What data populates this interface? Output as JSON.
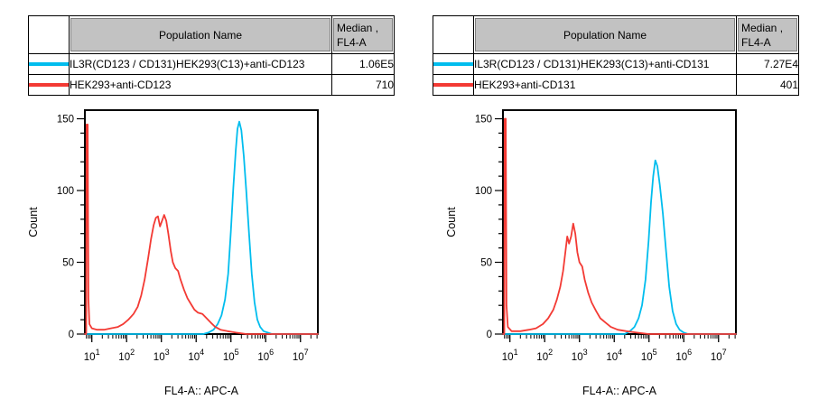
{
  "panels": [
    {
      "table": {
        "population_header": "Population Name",
        "median_header_line1": "Median ,",
        "median_header_line2": "FL4-A",
        "rows": [
          {
            "name": "IL3R(CD123 / CD131)HEK293(C13)+anti-CD123",
            "median": "1.06E5",
            "color": "#00bdee"
          },
          {
            "name": "HEK293+anti-CD123",
            "median": "710",
            "color": "#f33a34"
          }
        ]
      },
      "chart_data": {
        "type": "line",
        "title": "",
        "xlabel": "FL4-A:: APC-A",
        "ylabel": "Count",
        "x_scale": "log10",
        "x_range_log10": [
          0.8,
          7.5
        ],
        "y_range": [
          0,
          156
        ],
        "x_tick_base": "10",
        "x_tick_exponents": [
          1,
          2,
          3,
          4,
          5,
          6,
          7
        ],
        "y_major_ticks": [
          0,
          50,
          100,
          150
        ],
        "y_minor_step": 10,
        "grid": false,
        "legend_position": "table-above",
        "series": [
          {
            "name": "IL3R(CD123 / CD131)HEK293(C13)+anti-CD123",
            "color": "#00bdee",
            "points": [
              [
                0.8,
                0
              ],
              [
                4.2,
                0
              ],
              [
                4.35,
                1
              ],
              [
                4.5,
                3
              ],
              [
                4.62,
                7
              ],
              [
                4.73,
                13
              ],
              [
                4.83,
                24
              ],
              [
                4.92,
                42
              ],
              [
                5.0,
                72
              ],
              [
                5.07,
                102
              ],
              [
                5.14,
                128
              ],
              [
                5.19,
                143
              ],
              [
                5.24,
                148
              ],
              [
                5.3,
                142
              ],
              [
                5.37,
                124
              ],
              [
                5.44,
                100
              ],
              [
                5.52,
                70
              ],
              [
                5.6,
                42
              ],
              [
                5.68,
                22
              ],
              [
                5.76,
                10
              ],
              [
                5.84,
                5
              ],
              [
                5.94,
                2
              ],
              [
                6.06,
                1
              ],
              [
                6.18,
                0
              ],
              [
                7.5,
                0
              ]
            ]
          },
          {
            "name": "HEK293+anti-CD123",
            "color": "#f33a34",
            "points": [
              [
                0.8,
                0
              ],
              [
                0.84,
                0
              ],
              [
                0.85,
                146
              ],
              [
                0.88,
                146
              ],
              [
                0.9,
                25
              ],
              [
                0.93,
                7
              ],
              [
                1.0,
                4
              ],
              [
                1.15,
                3
              ],
              [
                1.35,
                3
              ],
              [
                1.55,
                4
              ],
              [
                1.75,
                5
              ],
              [
                1.9,
                7
              ],
              [
                2.05,
                10
              ],
              [
                2.2,
                14
              ],
              [
                2.32,
                19
              ],
              [
                2.42,
                27
              ],
              [
                2.52,
                38
              ],
              [
                2.62,
                53
              ],
              [
                2.7,
                66
              ],
              [
                2.78,
                76
              ],
              [
                2.84,
                81
              ],
              [
                2.9,
                82
              ],
              [
                2.96,
                75
              ],
              [
                3.02,
                79
              ],
              [
                3.08,
                83
              ],
              [
                3.14,
                79
              ],
              [
                3.2,
                70
              ],
              [
                3.27,
                58
              ],
              [
                3.33,
                50
              ],
              [
                3.4,
                46
              ],
              [
                3.48,
                44
              ],
              [
                3.55,
                38
              ],
              [
                3.65,
                31
              ],
              [
                3.75,
                25
              ],
              [
                3.85,
                21
              ],
              [
                3.95,
                17
              ],
              [
                4.05,
                15
              ],
              [
                4.18,
                14
              ],
              [
                4.3,
                11
              ],
              [
                4.42,
                8
              ],
              [
                4.55,
                5
              ],
              [
                4.7,
                3
              ],
              [
                4.9,
                2
              ],
              [
                5.15,
                1
              ],
              [
                5.45,
                0
              ],
              [
                7.5,
                0
              ]
            ]
          }
        ]
      }
    },
    {
      "table": {
        "population_header": "Population Name",
        "median_header_line1": "Median ,",
        "median_header_line2": "FL4-A",
        "rows": [
          {
            "name": "IL3R(CD123 / CD131)HEK293(C13)+anti-CD131",
            "median": "7.27E4",
            "color": "#00bdee"
          },
          {
            "name": "HEK293+anti-CD131",
            "median": "401",
            "color": "#f33a34"
          }
        ]
      },
      "chart_data": {
        "type": "line",
        "title": "",
        "xlabel": "FL4-A:: APC-A",
        "ylabel": "Count",
        "x_scale": "log10",
        "x_range_log10": [
          0.8,
          7.5
        ],
        "y_range": [
          0,
          156
        ],
        "x_tick_base": "10",
        "x_tick_exponents": [
          1,
          2,
          3,
          4,
          5,
          6,
          7
        ],
        "y_major_ticks": [
          0,
          50,
          100,
          150
        ],
        "y_minor_step": 10,
        "grid": false,
        "legend_position": "table-above",
        "series": [
          {
            "name": "IL3R(CD123 / CD131)HEK293(C13)+anti-CD131",
            "color": "#00bdee",
            "points": [
              [
                0.8,
                0
              ],
              [
                4.3,
                0
              ],
              [
                4.45,
                2
              ],
              [
                4.58,
                5
              ],
              [
                4.7,
                11
              ],
              [
                4.8,
                20
              ],
              [
                4.9,
                38
              ],
              [
                4.99,
                65
              ],
              [
                5.06,
                92
              ],
              [
                5.12,
                110
              ],
              [
                5.18,
                121
              ],
              [
                5.24,
                117
              ],
              [
                5.31,
                104
              ],
              [
                5.4,
                84
              ],
              [
                5.49,
                58
              ],
              [
                5.58,
                33
              ],
              [
                5.68,
                16
              ],
              [
                5.78,
                7
              ],
              [
                5.88,
                3
              ],
              [
                6.0,
                1
              ],
              [
                6.12,
                0
              ],
              [
                7.5,
                0
              ]
            ]
          },
          {
            "name": "HEK293+anti-CD131",
            "color": "#f33a34",
            "points": [
              [
                0.8,
                0
              ],
              [
                0.84,
                0
              ],
              [
                0.85,
                150
              ],
              [
                0.88,
                150
              ],
              [
                0.9,
                20
              ],
              [
                0.94,
                5
              ],
              [
                1.05,
                2
              ],
              [
                1.3,
                2
              ],
              [
                1.55,
                3
              ],
              [
                1.75,
                4
              ],
              [
                1.95,
                7
              ],
              [
                2.1,
                11
              ],
              [
                2.25,
                17
              ],
              [
                2.35,
                24
              ],
              [
                2.45,
                33
              ],
              [
                2.53,
                44
              ],
              [
                2.6,
                58
              ],
              [
                2.65,
                68
              ],
              [
                2.7,
                63
              ],
              [
                2.76,
                68
              ],
              [
                2.82,
                77
              ],
              [
                2.88,
                70
              ],
              [
                2.94,
                57
              ],
              [
                3.0,
                50
              ],
              [
                3.08,
                47
              ],
              [
                3.15,
                38
              ],
              [
                3.25,
                29
              ],
              [
                3.35,
                22
              ],
              [
                3.48,
                16
              ],
              [
                3.6,
                11
              ],
              [
                3.75,
                8
              ],
              [
                3.9,
                5
              ],
              [
                4.1,
                3
              ],
              [
                4.35,
                2
              ],
              [
                4.65,
                1
              ],
              [
                5.0,
                0
              ],
              [
                7.5,
                0
              ]
            ]
          }
        ]
      }
    }
  ]
}
